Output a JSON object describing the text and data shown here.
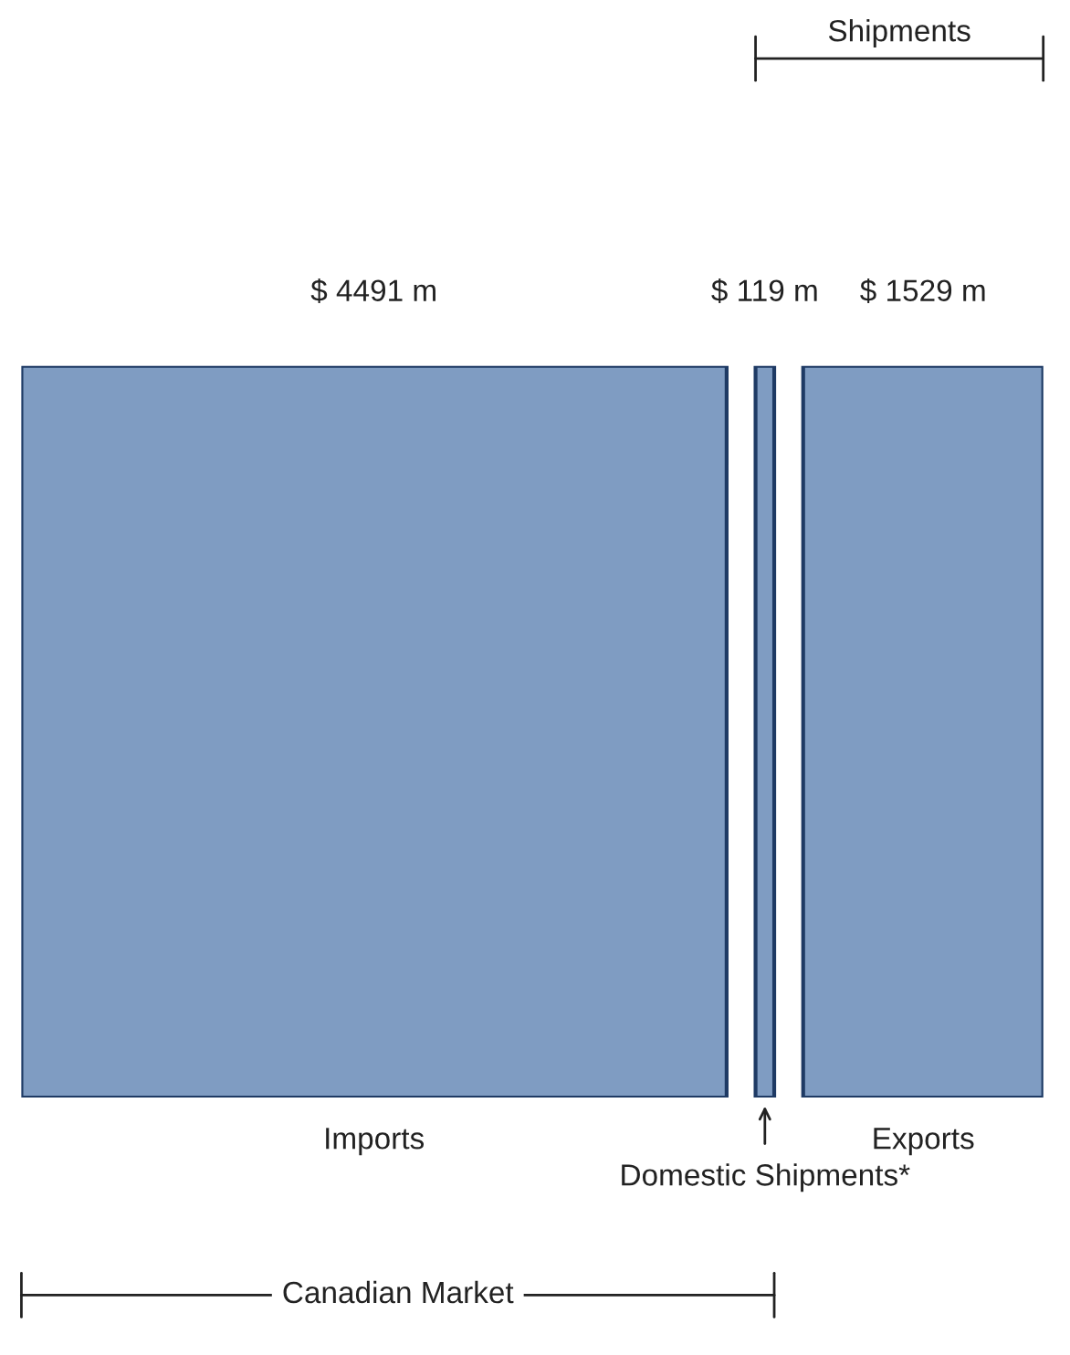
{
  "chart_data": {
    "type": "other",
    "categories": [
      "Imports",
      "Domestic Shipments*",
      "Exports"
    ],
    "values": [
      4491,
      119,
      1529
    ],
    "value_labels": [
      "$ 4491 m",
      "$ 119 m",
      "$ 1529 m"
    ],
    "colors": [
      "#7f9cc2",
      "#7f9cc2",
      "#7f9cc2"
    ],
    "annotations": [
      "Canadian Market",
      "Shipments"
    ]
  }
}
